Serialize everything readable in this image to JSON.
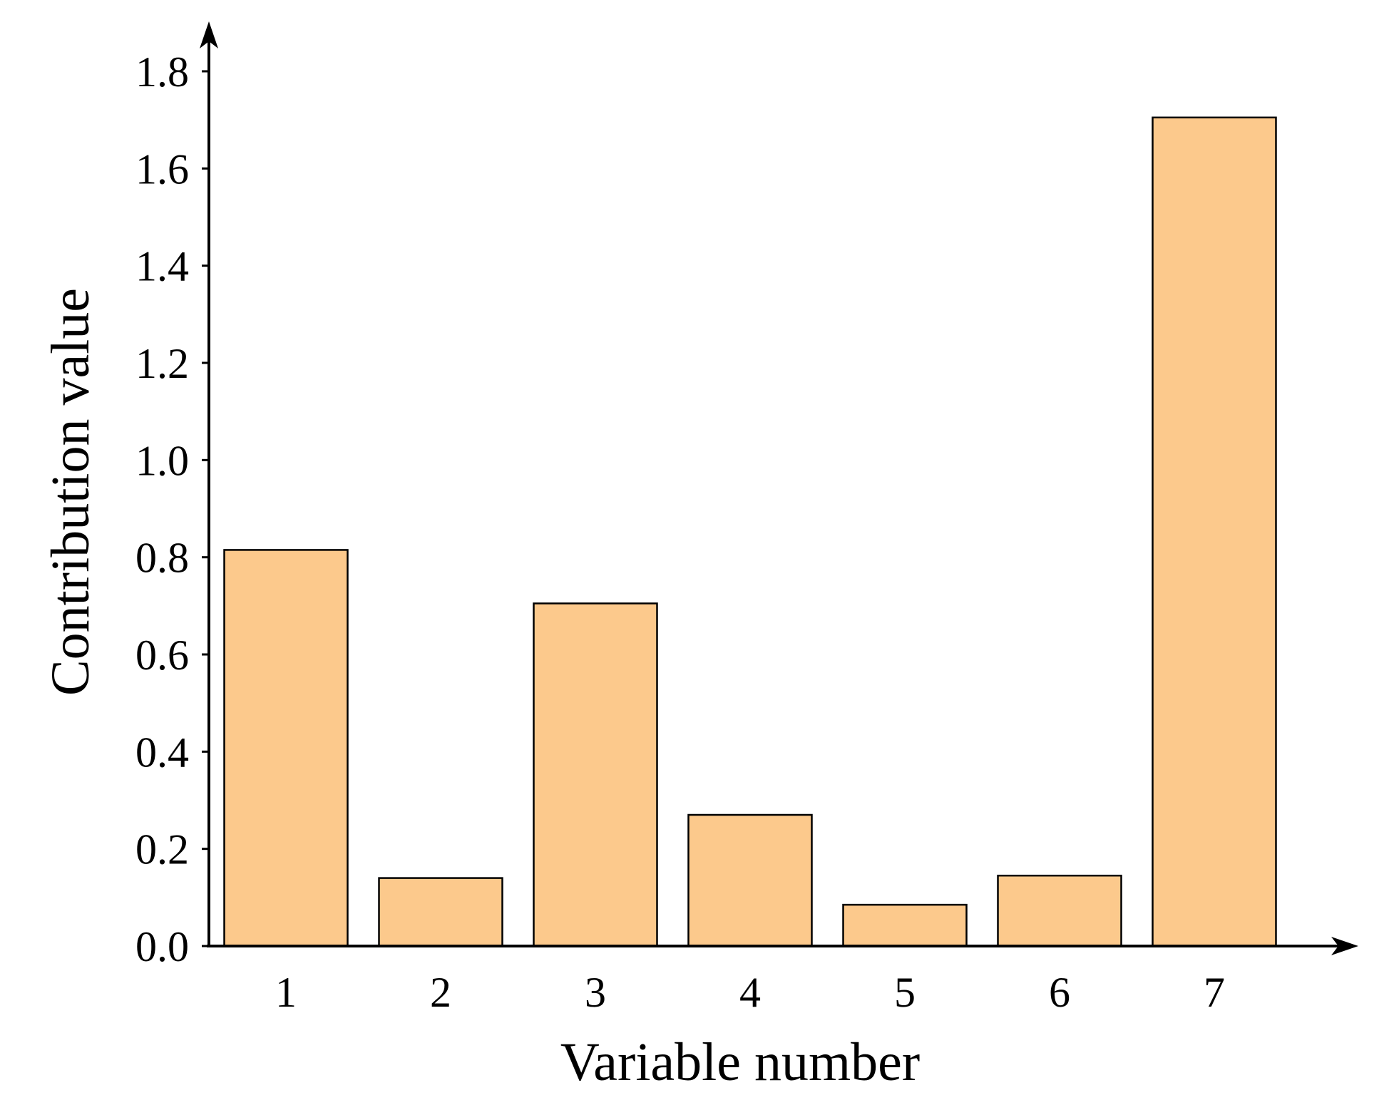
{
  "chart_data": {
    "type": "bar",
    "title": "",
    "xlabel": "Variable number",
    "ylabel": "Contribution value",
    "categories": [
      "1",
      "2",
      "3",
      "4",
      "5",
      "6",
      "7"
    ],
    "values": [
      0.815,
      0.14,
      0.705,
      0.27,
      0.085,
      0.145,
      1.705
    ],
    "ylim": [
      0.0,
      1.8
    ],
    "yticks": [
      "0.0",
      "0.2",
      "0.4",
      "0.6",
      "0.8",
      "1.0",
      "1.2",
      "1.4",
      "1.6",
      "1.8"
    ],
    "grid": false,
    "legend": "none",
    "colors": {
      "bar_fill": "#FCC98C",
      "bar_stroke": "#000000",
      "axis": "#000000"
    }
  }
}
